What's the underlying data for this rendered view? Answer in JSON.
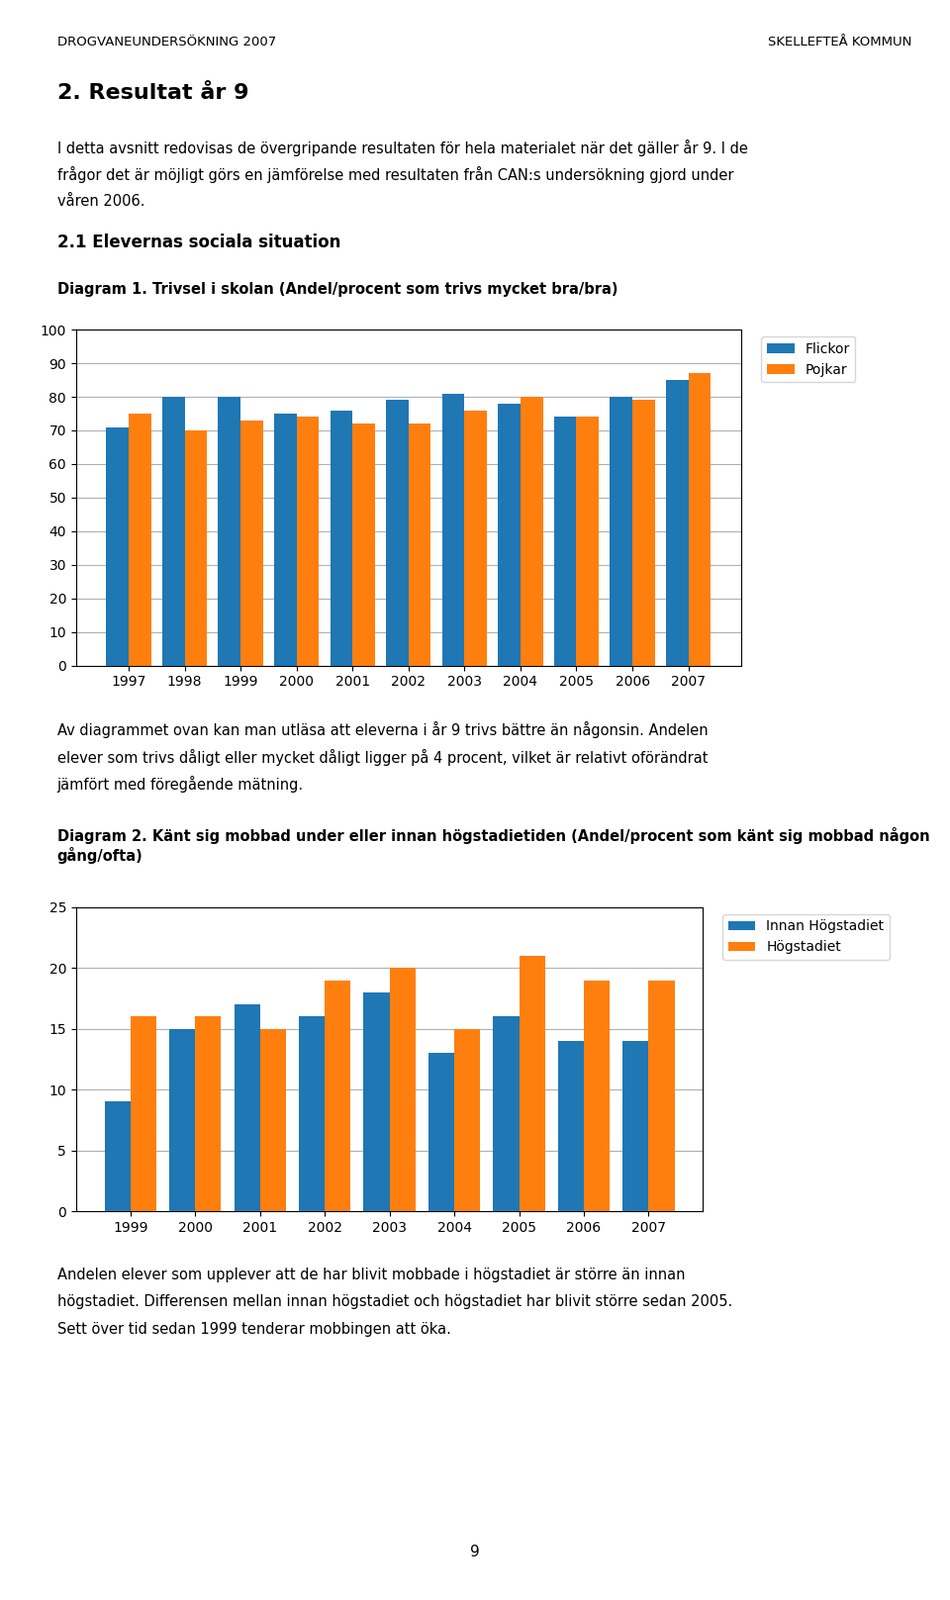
{
  "chart_data": [
    {
      "type": "bar",
      "title": "Diagram 1. Trivsel i skolan (Andel/procent som trivs mycket bra/bra)",
      "annotations": [
        "DROGVANEUNDERSÖKNING 2007",
        "SKELLEFTEÅ KOMMUN",
        "2. Resultat år 9",
        "I detta avsnitt redovisas de övergripande resultaten för hela materialet när det gäller år 9. I de",
        "frågor det är möjligt görs en jämförelse med resultaten från CAN:s undersökning gjord under",
        "våren 2006.",
        "2.1 Elevernas sociala situation"
      ],
      "categories": [
        "1997",
        "1998",
        "1999",
        "2000",
        "2001",
        "2002",
        "2003",
        "2004",
        "2005",
        "2006",
        "2007"
      ],
      "series": [
        {
          "name": "Flickor",
          "values": [
            71,
            80,
            80,
            75,
            76,
            79,
            81,
            78,
            74,
            80,
            85
          ]
        },
        {
          "name": "Pojkar",
          "values": [
            75,
            70,
            73,
            74,
            72,
            72,
            76,
            80,
            74,
            79,
            87
          ]
        }
      ],
      "ylim": [
        0,
        100
      ],
      "yticks": [
        0,
        10,
        20,
        30,
        40,
        50,
        60,
        70,
        80,
        90,
        100
      ],
      "grid": true,
      "legend": "upper right"
    },
    {
      "type": "bar",
      "title": "Diagram 2. Känt sig mobbad under eller innan högstadietiden (Andel/procent som känt sig mobbad någon gång/ofta)",
      "annotations": [
        "Av diagrammet ovan kan man utläsa att eleverna i år 9 trivs bättre än någonsin. Andelen",
        "elever som trivs dåligt eller mycket dåligt ligger på 4 procent, vilket är relativt oförändrat",
        "jämfört med föregående mätning.",
        "Andelen elever som upplever att de har blivit mobbade i högstadiet är större än innan",
        "högstadiet. Differensen mellan innan högstadiet och högstadiet har blivit större sedan 2005.",
        "Sett över tid sedan 1999 tenderar mobbingen att öka.",
        "9"
      ],
      "categories": [
        "1999",
        "2000",
        "2001",
        "2002",
        "2003",
        "2004",
        "2005",
        "2006",
        "2007"
      ],
      "series": [
        {
          "name": "Innan Högstadiet",
          "values": [
            9,
            15,
            17,
            16,
            18,
            13,
            16,
            14,
            14
          ]
        },
        {
          "name": "Högstadiet",
          "values": [
            16,
            16,
            15,
            19,
            20,
            15,
            21,
            19,
            19
          ]
        }
      ],
      "ylim": [
        0,
        25
      ],
      "yticks": [
        0,
        5,
        10,
        15,
        20,
        25
      ],
      "grid": true,
      "legend": "upper right"
    }
  ]
}
